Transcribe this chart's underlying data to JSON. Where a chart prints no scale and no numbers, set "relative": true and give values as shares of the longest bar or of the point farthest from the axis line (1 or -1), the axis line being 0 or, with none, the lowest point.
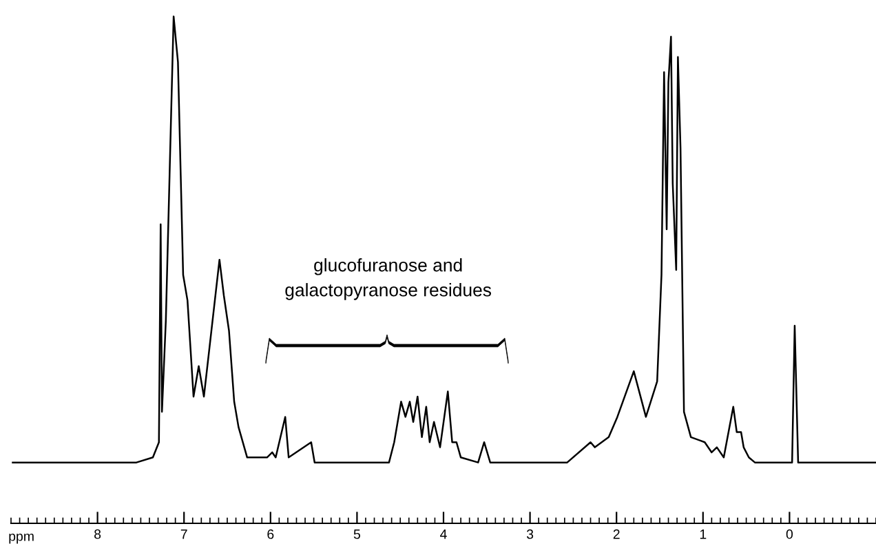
{
  "chart_data": {
    "type": "line",
    "relative": true,
    "xlabel": "ppm",
    "annotations": [
      "glucofuranose and\ngalactopyranose residues"
    ],
    "xlim": [
      9.0,
      -1.0
    ],
    "xticks": [
      8,
      7,
      6,
      5,
      4,
      3,
      2,
      1,
      0
    ],
    "grid": false,
    "legend": false,
    "marker": "none",
    "line_style": "solid",
    "series": [
      {
        "color": "#000000",
        "x": [
          8.98,
          7.55,
          7.36,
          7.29,
          7.27,
          7.255,
          7.21,
          7.12,
          7.07,
          7.01,
          6.96,
          6.89,
          6.83,
          6.77,
          6.59,
          6.54,
          6.48,
          6.42,
          6.37,
          6.27,
          6.04,
          5.98,
          5.94,
          5.83,
          5.79,
          5.53,
          5.49,
          4.63,
          4.57,
          4.49,
          4.44,
          4.39,
          4.35,
          4.3,
          4.25,
          4.2,
          4.16,
          4.11,
          4.04,
          3.95,
          3.9,
          3.85,
          3.8,
          3.6,
          3.53,
          3.46,
          2.57,
          2.3,
          2.25,
          2.09,
          1.99,
          1.8,
          1.66,
          1.53,
          1.48,
          1.45,
          1.42,
          1.4,
          1.37,
          1.35,
          1.31,
          1.29,
          1.26,
          1.22,
          1.14,
          0.98,
          0.9,
          0.84,
          0.76,
          0.65,
          0.61,
          0.56,
          0.53,
          0.47,
          0.4,
          -0.03,
          -0.06,
          -0.1,
          -0.99
        ],
        "values": [
          0.12,
          0.12,
          0.13,
          0.16,
          0.59,
          0.22,
          0.4,
          1.0,
          0.91,
          0.49,
          0.44,
          0.25,
          0.31,
          0.25,
          0.52,
          0.45,
          0.38,
          0.24,
          0.19,
          0.13,
          0.13,
          0.14,
          0.13,
          0.21,
          0.13,
          0.16,
          0.12,
          0.12,
          0.16,
          0.24,
          0.21,
          0.24,
          0.2,
          0.25,
          0.17,
          0.23,
          0.16,
          0.2,
          0.15,
          0.26,
          0.16,
          0.16,
          0.13,
          0.12,
          0.16,
          0.12,
          0.12,
          0.16,
          0.15,
          0.17,
          0.21,
          0.3,
          0.21,
          0.28,
          0.49,
          0.89,
          0.58,
          0.87,
          0.96,
          0.67,
          0.5,
          0.92,
          0.74,
          0.22,
          0.17,
          0.16,
          0.14,
          0.15,
          0.13,
          0.23,
          0.18,
          0.18,
          0.15,
          0.13,
          0.12,
          0.12,
          0.39,
          0.12,
          0.12
        ]
      }
    ]
  }
}
